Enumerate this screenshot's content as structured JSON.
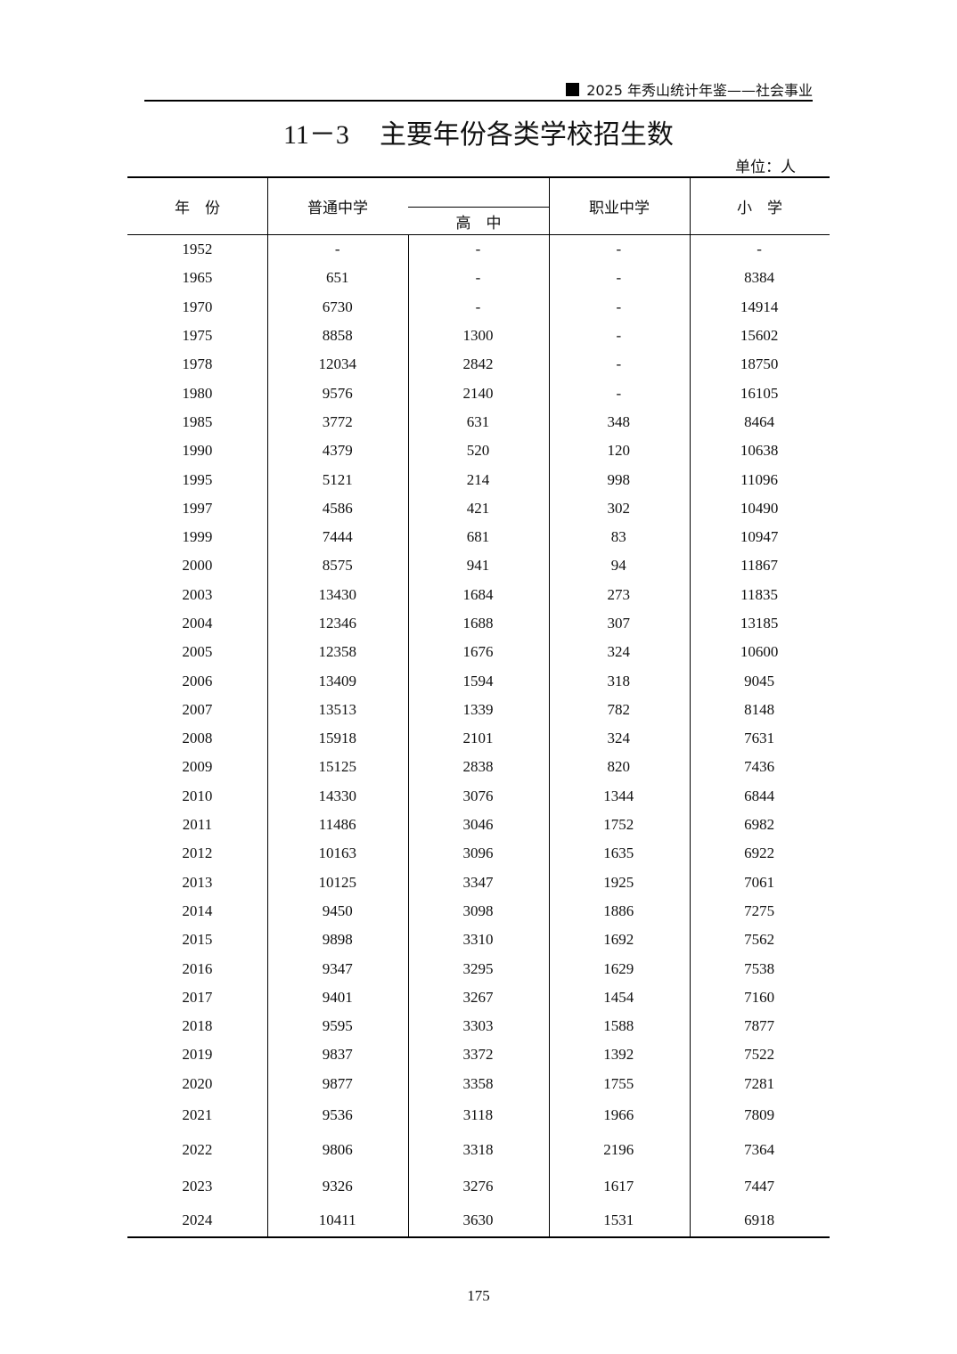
{
  "running_head": "2025 年秀山统计年鉴——社会事业",
  "title": {
    "number": "11－3",
    "text": "主要年份各类学校招生数"
  },
  "unit": "单位：人",
  "columns": {
    "year": "年　份",
    "general_middle": "普通中学",
    "senior_high": "高　中",
    "vocational": "职业中学",
    "primary": "小　学"
  },
  "rows": [
    [
      "1952",
      "-",
      "-",
      "-",
      "-"
    ],
    [
      "1965",
      "651",
      "-",
      "-",
      "8384"
    ],
    [
      "1970",
      "6730",
      "-",
      "-",
      "14914"
    ],
    [
      "1975",
      "8858",
      "1300",
      "-",
      "15602"
    ],
    [
      "1978",
      "12034",
      "2842",
      "-",
      "18750"
    ],
    [
      "1980",
      "9576",
      "2140",
      "-",
      "16105"
    ],
    [
      "1985",
      "3772",
      "631",
      "348",
      "8464"
    ],
    [
      "1990",
      "4379",
      "520",
      "120",
      "10638"
    ],
    [
      "1995",
      "5121",
      "214",
      "998",
      "11096"
    ],
    [
      "1997",
      "4586",
      "421",
      "302",
      "10490"
    ],
    [
      "1999",
      "7444",
      "681",
      "83",
      "10947"
    ],
    [
      "2000",
      "8575",
      "941",
      "94",
      "11867"
    ],
    [
      "2003",
      "13430",
      "1684",
      "273",
      "11835"
    ],
    [
      "2004",
      "12346",
      "1688",
      "307",
      "13185"
    ],
    [
      "2005",
      "12358",
      "1676",
      "324",
      "10600"
    ],
    [
      "2006",
      "13409",
      "1594",
      "318",
      "9045"
    ],
    [
      "2007",
      "13513",
      "1339",
      "782",
      "8148"
    ],
    [
      "2008",
      "15918",
      "2101",
      "324",
      "7631"
    ],
    [
      "2009",
      "15125",
      "2838",
      "820",
      "7436"
    ],
    [
      "2010",
      "14330",
      "3076",
      "1344",
      "6844"
    ],
    [
      "2011",
      "11486",
      "3046",
      "1752",
      "6982"
    ],
    [
      "2012",
      "10163",
      "3096",
      "1635",
      "6922"
    ],
    [
      "2013",
      "10125",
      "3347",
      "1925",
      "7061"
    ],
    [
      "2014",
      "9450",
      "3098",
      "1886",
      "7275"
    ],
    [
      "2015",
      "9898",
      "3310",
      "1692",
      "7562"
    ],
    [
      "2016",
      "9347",
      "3295",
      "1629",
      "7538"
    ],
    [
      "2017",
      "9401",
      "3267",
      "1454",
      "7160"
    ],
    [
      "2018",
      "9595",
      "3303",
      "1588",
      "7877"
    ],
    [
      "2019",
      "9837",
      "3372",
      "1392",
      "7522"
    ],
    [
      "2020",
      "9877",
      "3358",
      "1755",
      "7281"
    ],
    [
      "2021",
      "9536",
      "3118",
      "1966",
      "7809"
    ],
    [
      "2022",
      "9806",
      "3318",
      "2196",
      "7364"
    ],
    [
      "2023",
      "9326",
      "3276",
      "1617",
      "7447"
    ],
    [
      "2024",
      "10411",
      "3630",
      "1531",
      "6918"
    ]
  ],
  "page_number": "175"
}
